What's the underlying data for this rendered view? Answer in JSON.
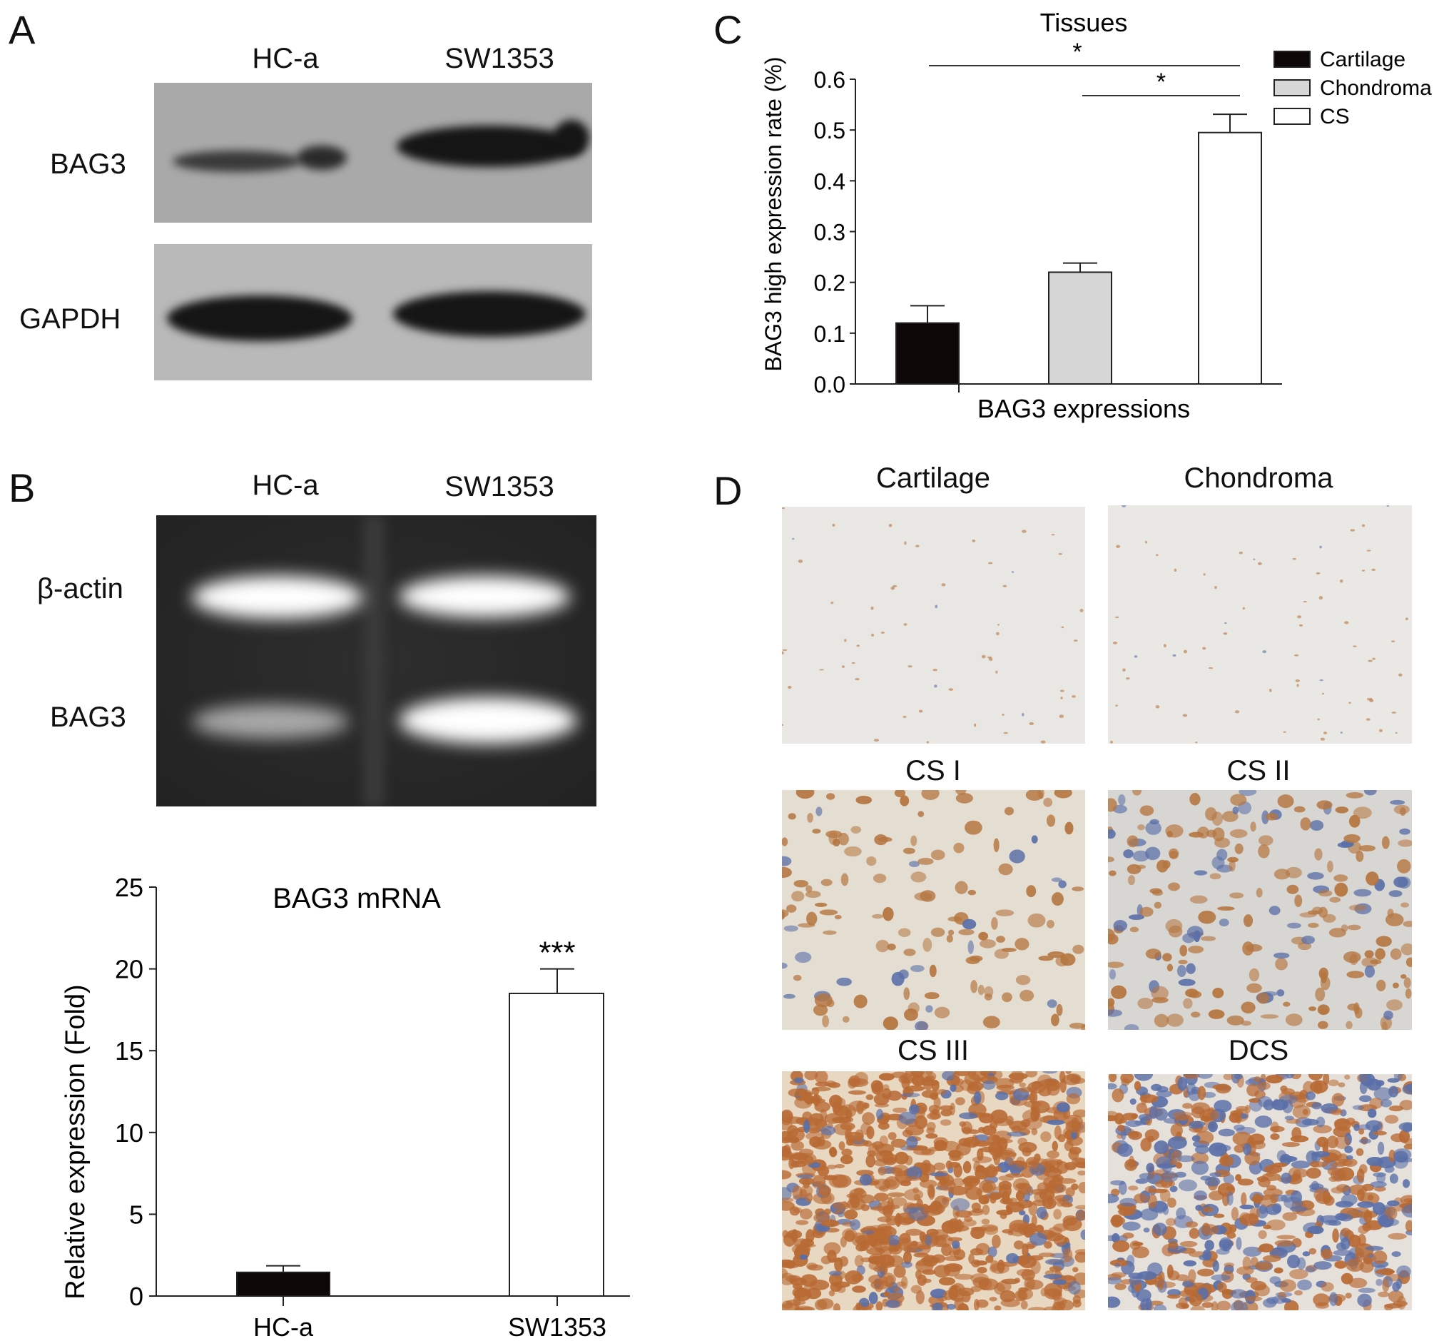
{
  "panels": {
    "A": {
      "letter": "A",
      "lanes": [
        "HC-a",
        "SW1353"
      ],
      "rows": [
        "BAG3",
        "GAPDH"
      ]
    },
    "B": {
      "letter": "B",
      "lanes": [
        "HC-a",
        "SW1353"
      ],
      "rows": [
        "β-actin",
        "BAG3"
      ]
    },
    "C": {
      "letter": "C"
    },
    "D": {
      "letter": "D",
      "images": [
        "Cartilage",
        "Chondroma",
        "CS I",
        "CS II",
        "CS III",
        "DCS"
      ]
    }
  },
  "chart_data": [
    {
      "type": "bar",
      "title": "BAG3 mRNA",
      "xlabel": "",
      "ylabel": "Relative expression (Fold)",
      "categories": [
        "HC-a",
        "SW1353"
      ],
      "values": [
        1.45,
        18.5
      ],
      "error_upper": [
        1.85,
        20.0
      ],
      "colors": [
        "#0d0707",
        "#ffffff"
      ],
      "annotations": [
        {
          "category": "SW1353",
          "text": "***"
        }
      ],
      "ylim": [
        0,
        25
      ],
      "yticks": [
        "0",
        "5",
        "10",
        "15",
        "20",
        "25"
      ],
      "grid": false
    },
    {
      "type": "bar",
      "title": "Tissues",
      "xlabel": "BAG3 expressions",
      "ylabel": "BAG3 high expression rate (%)",
      "categories": [
        "Cartilage",
        "Chondroma",
        "CS"
      ],
      "values": [
        0.12,
        0.22,
        0.495
      ],
      "error_upper": [
        0.154,
        0.238,
        0.531
      ],
      "colors": [
        "#0d0707",
        "#d6d6d6",
        "#ffffff"
      ],
      "legend": {
        "entries": [
          "Cartilage",
          "Chondroma",
          "CS"
        ],
        "position": "top-right"
      },
      "significance": [
        {
          "from": "Cartilage",
          "to": "CS",
          "text": "*"
        },
        {
          "from": "Chondroma",
          "to": "CS",
          "text": "*"
        }
      ],
      "ylim": [
        0,
        0.6
      ],
      "yticks": [
        "0.0",
        "0.1",
        "0.2",
        "0.3",
        "0.4",
        "0.5",
        "0.6"
      ],
      "grid": false
    }
  ]
}
